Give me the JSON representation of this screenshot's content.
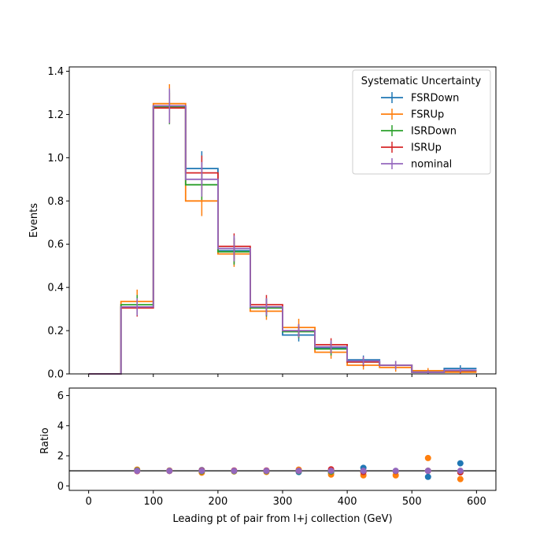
{
  "chart_data": {
    "type": "step-histogram",
    "xlabel": "Leading pt of pair from l+j collection (GeV)",
    "ylabel_top": "Events",
    "ylabel_bottom": "Ratio",
    "xlim": [
      -30,
      630
    ],
    "ylim_top": [
      0,
      1.42
    ],
    "ylim_bottom": [
      -0.3,
      6.5
    ],
    "xticks": [
      0,
      100,
      200,
      300,
      400,
      500,
      600
    ],
    "yticks_top": [
      0.0,
      0.2,
      0.4,
      0.6,
      0.8,
      1.0,
      1.2,
      1.4
    ],
    "yticks_bottom": [
      0,
      2,
      4,
      6
    ],
    "ratio_reference": 1.0,
    "bin_edges": [
      0,
      50,
      100,
      150,
      200,
      250,
      300,
      350,
      400,
      450,
      500,
      550,
      600
    ],
    "legend": {
      "title": "Systematic Uncertainty",
      "placement": "top-right"
    },
    "series": [
      {
        "name": "FSRDown",
        "color": "#1f77b4",
        "values": [
          0,
          0.31,
          1.24,
          0.95,
          0.57,
          0.31,
          0.18,
          0.12,
          0.065,
          0.04,
          0.008,
          0.025
        ],
        "errors": [
          0,
          0.04,
          0.07,
          0.08,
          0.06,
          0.04,
          0.03,
          0.03,
          0.02,
          0.02,
          0.008,
          0.015
        ],
        "ratios": [
          null,
          1.0,
          1.0,
          1.05,
          0.98,
          0.98,
          0.92,
          0.88,
          1.2,
          0.98,
          0.6,
          1.5
        ]
      },
      {
        "name": "FSRUp",
        "color": "#ff7f0e",
        "values": [
          0,
          0.335,
          1.25,
          0.8,
          0.555,
          0.29,
          0.215,
          0.1,
          0.04,
          0.03,
          0.015,
          0.008
        ],
        "errors": [
          0,
          0.055,
          0.09,
          0.07,
          0.06,
          0.04,
          0.04,
          0.03,
          0.02,
          0.02,
          0.012,
          0.008
        ],
        "ratios": [
          null,
          1.08,
          1.02,
          0.88,
          0.96,
          0.93,
          1.08,
          0.75,
          0.7,
          0.7,
          1.85,
          0.45
        ]
      },
      {
        "name": "ISRDown",
        "color": "#2ca02c",
        "values": [
          0,
          0.32,
          1.235,
          0.875,
          0.565,
          0.305,
          0.195,
          0.115,
          0.055,
          0.04,
          0.008,
          0.015
        ],
        "errors": [
          0,
          0.045,
          0.08,
          0.07,
          0.06,
          0.04,
          0.03,
          0.03,
          0.02,
          0.02,
          0.008,
          0.01
        ],
        "ratios": [
          null,
          1.03,
          1.0,
          0.97,
          0.98,
          0.98,
          0.98,
          0.95,
          0.92,
          0.98,
          1.0,
          0.9
        ]
      },
      {
        "name": "ISRUp",
        "color": "#d62728",
        "values": [
          0,
          0.305,
          1.23,
          0.93,
          0.59,
          0.32,
          0.2,
          0.135,
          0.055,
          0.04,
          0.008,
          0.015
        ],
        "errors": [
          0,
          0.04,
          0.07,
          0.08,
          0.06,
          0.045,
          0.03,
          0.03,
          0.02,
          0.02,
          0.008,
          0.01
        ],
        "ratios": [
          null,
          0.98,
          0.99,
          1.03,
          1.02,
          1.02,
          1.0,
          1.1,
          0.92,
          0.98,
          1.0,
          0.9
        ]
      },
      {
        "name": "nominal",
        "color": "#9467bd",
        "values": [
          0,
          0.31,
          1.24,
          0.9,
          0.58,
          0.31,
          0.2,
          0.125,
          0.06,
          0.04,
          0.008,
          0.017
        ],
        "errors": [
          0,
          0.04,
          0.08,
          0.08,
          0.06,
          0.04,
          0.03,
          0.03,
          0.02,
          0.02,
          0.008,
          0.01
        ],
        "ratios": [
          null,
          1.0,
          1.0,
          1.0,
          1.0,
          1.0,
          1.0,
          1.0,
          1.0,
          1.0,
          1.0,
          1.0
        ]
      }
    ]
  }
}
